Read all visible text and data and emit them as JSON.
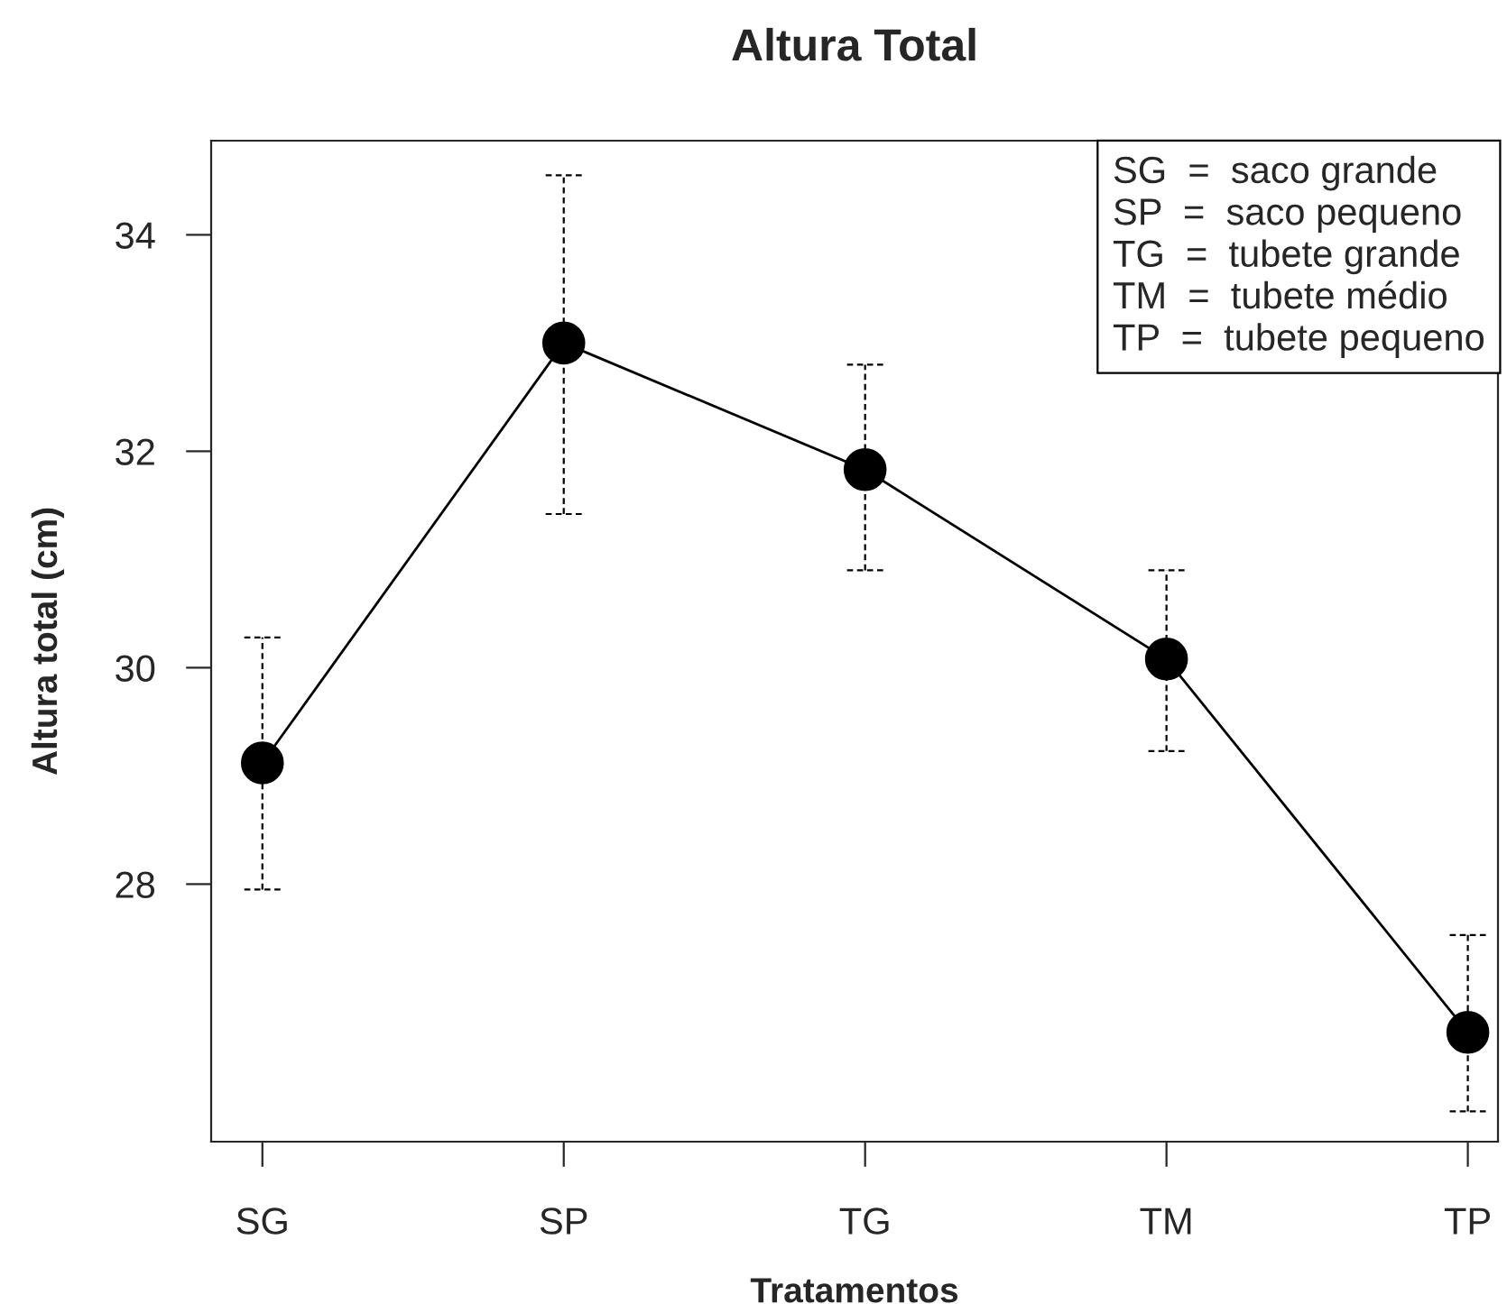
{
  "chart_data": {
    "type": "line",
    "title": "Altura Total",
    "xlabel": "Tratamentos",
    "ylabel": "Altura total (cm)",
    "categories": [
      "SG",
      "SP",
      "TG",
      "TM",
      "TP"
    ],
    "values": [
      29.12,
      33.0,
      31.83,
      30.08,
      26.63
    ],
    "errors": [
      [
        27.95,
        30.28
      ],
      [
        31.42,
        34.55
      ],
      [
        30.9,
        32.8
      ],
      [
        29.23,
        30.9
      ],
      [
        25.9,
        27.53
      ]
    ],
    "color": "#000000",
    "marker": "circle",
    "line_style": "solid",
    "grid": false,
    "ylim": [
      25.62,
      34.87
    ],
    "yticks": [
      28,
      30,
      32,
      34
    ],
    "annotations": [
      "SG  =  saco grande\nSP  =  saco pequeno\nTG  =  tubete grande\nTM  =  tubete médio\nTP  =  tubete pequeno"
    ]
  }
}
